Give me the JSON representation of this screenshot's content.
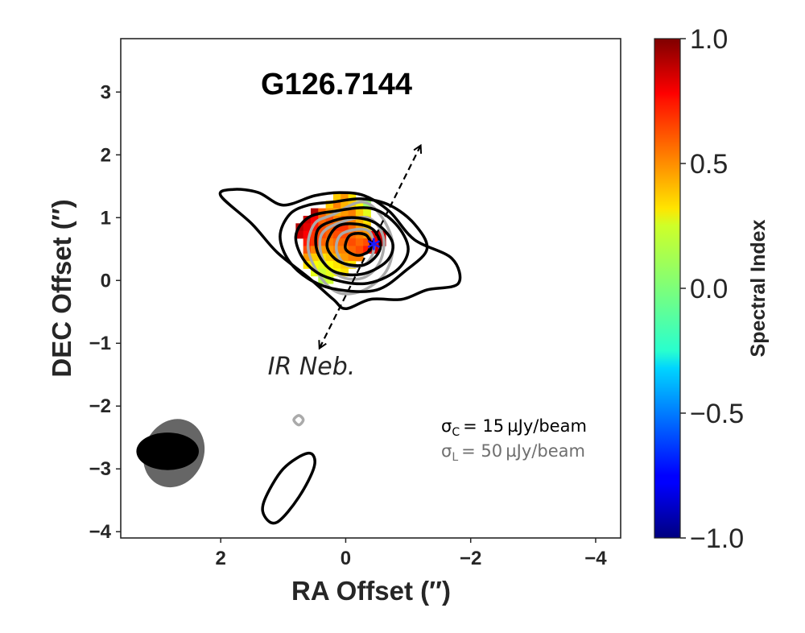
{
  "chart_data": {
    "type": "heatmap",
    "title": "G126.7144",
    "xlabel": "RA Offset (″)",
    "ylabel": "DEC Offset (″)",
    "xlim": [
      3.6,
      -4.4
    ],
    "ylim": [
      -4.1,
      3.85
    ],
    "xticks": [
      2,
      0,
      -2,
      -4
    ],
    "xtick_labels": [
      "2",
      "0",
      "−2",
      "−4"
    ],
    "yticks": [
      3,
      2,
      1,
      0,
      -1,
      -2,
      -3,
      -4
    ],
    "ytick_labels": [
      "3",
      "2",
      "1",
      "0",
      "−1",
      "−2",
      "−3",
      "−4"
    ],
    "colorbar": {
      "label": "Spectral Index",
      "range": [
        -1.0,
        1.0
      ],
      "ticks": [
        1.0,
        0.5,
        0.0,
        -0.5,
        -1.0
      ],
      "tick_labels": [
        "1.0",
        "0.5",
        "0.0",
        "−0.5",
        "−1.0"
      ],
      "colormap": "jet"
    },
    "pixel_size_arcsec": 0.12,
    "spectral_index_map": {
      "x": [
        0.86,
        0.74,
        0.62,
        0.5,
        0.38,
        0.26,
        0.14,
        0.02,
        -0.1,
        -0.22,
        -0.34,
        -0.46,
        -0.58,
        -0.7,
        -0.82,
        -0.94,
        -1.06
      ],
      "y": [
        1.33,
        1.21,
        1.09,
        0.97,
        0.85,
        0.73,
        0.61,
        0.49,
        0.37,
        0.25,
        0.13,
        0.01,
        -0.11
      ],
      "values": [
        [
          null,
          null,
          null,
          null,
          null,
          null,
          0.35,
          0.45,
          0.3,
          null,
          null,
          null,
          null,
          null,
          null,
          null,
          null
        ],
        [
          null,
          null,
          null,
          null,
          null,
          0.35,
          0.5,
          0.4,
          0.35,
          0.25,
          0.05,
          null,
          null,
          null,
          null,
          null,
          null
        ],
        [
          null,
          null,
          null,
          0.9,
          0.55,
          0.45,
          0.4,
          0.45,
          0.5,
          0.35,
          0.2,
          null,
          null,
          null,
          null,
          null,
          null
        ],
        [
          null,
          null,
          0.85,
          0.75,
          0.55,
          0.6,
          0.5,
          0.55,
          0.5,
          0.4,
          0.3,
          null,
          null,
          null,
          null,
          null,
          null
        ],
        [
          null,
          0.9,
          0.8,
          0.7,
          0.6,
          0.55,
          0.65,
          0.65,
          0.55,
          0.45,
          0.35,
          null,
          null,
          null,
          null,
          null,
          null
        ],
        [
          null,
          0.85,
          0.75,
          0.65,
          0.6,
          0.55,
          0.6,
          0.6,
          0.55,
          0.5,
          0.45,
          0.8,
          0.85,
          null,
          null,
          null,
          null
        ],
        [
          null,
          null,
          0.7,
          0.65,
          0.55,
          0.5,
          0.55,
          0.55,
          0.6,
          0.55,
          0.6,
          0.75,
          0.9,
          null,
          null,
          null,
          null
        ],
        [
          null,
          null,
          0.6,
          0.5,
          0.45,
          0.45,
          0.5,
          0.5,
          0.55,
          0.6,
          0.7,
          0.85,
          null,
          null,
          null,
          null,
          null
        ],
        [
          null,
          null,
          0.45,
          0.35,
          0.3,
          0.35,
          0.4,
          0.45,
          0.5,
          0.5,
          null,
          null,
          null,
          null,
          null,
          null,
          null
        ],
        [
          null,
          null,
          0.3,
          0.25,
          0.2,
          0.25,
          0.3,
          0.35,
          0.3,
          null,
          null,
          null,
          null,
          null,
          null,
          null,
          null
        ],
        [
          null,
          null,
          null,
          0.2,
          0.15,
          0.2,
          0.25,
          0.3,
          null,
          null,
          null,
          null,
          null,
          null,
          null,
          null,
          null
        ],
        [
          null,
          null,
          null,
          null,
          0.1,
          0.15,
          null,
          null,
          null,
          null,
          null,
          null,
          null,
          null,
          null,
          null,
          null
        ],
        [
          null,
          null,
          null,
          null,
          null,
          null,
          null,
          null,
          null,
          null,
          null,
          null,
          null,
          null,
          null,
          null,
          null
        ]
      ]
    },
    "continuum_contours": {
      "color": "#000000",
      "rms_text": "σ",
      "rms_subscript": "C",
      "rms_value": "= 15 µJy/beam",
      "contours": [
        {
          "level": 1,
          "points": [
            [
              1.0,
              1.2
            ],
            [
              1.4,
              1.4
            ],
            [
              1.8,
              1.45
            ],
            [
              2.0,
              1.35
            ],
            [
              1.5,
              0.9
            ],
            [
              1.1,
              0.45
            ],
            [
              0.6,
              0.05
            ],
            [
              0.2,
              -0.3
            ],
            [
              0.0,
              -0.45
            ],
            [
              -0.4,
              -0.3
            ],
            [
              -0.9,
              -0.3
            ],
            [
              -1.3,
              -0.15
            ],
            [
              -1.8,
              -0.05
            ],
            [
              -1.7,
              0.35
            ],
            [
              -1.1,
              0.65
            ],
            [
              -0.7,
              1.1
            ],
            [
              -0.3,
              1.35
            ],
            [
              0.1,
              1.4
            ],
            [
              0.5,
              1.35
            ]
          ]
        },
        {
          "level": 2,
          "points": [
            [
              0.2,
              1.25
            ],
            [
              0.6,
              1.2
            ],
            [
              0.9,
              1.05
            ],
            [
              1.05,
              0.7
            ],
            [
              0.9,
              0.3
            ],
            [
              0.55,
              0.0
            ],
            [
              0.1,
              -0.15
            ],
            [
              -0.5,
              -0.15
            ],
            [
              -0.95,
              0.15
            ],
            [
              -1.3,
              0.5
            ],
            [
              -1.1,
              0.9
            ],
            [
              -0.7,
              1.2
            ],
            [
              -0.25,
              1.3
            ]
          ]
        },
        {
          "level": 3,
          "points": [
            [
              0.2,
              1.1
            ],
            [
              0.6,
              1.0
            ],
            [
              0.8,
              0.7
            ],
            [
              0.65,
              0.3
            ],
            [
              0.3,
              0.05
            ],
            [
              -0.3,
              -0.05
            ],
            [
              -0.8,
              0.15
            ],
            [
              -1.0,
              0.5
            ],
            [
              -0.8,
              0.9
            ],
            [
              -0.4,
              1.15
            ]
          ]
        },
        {
          "level": 4,
          "points": [
            [
              0.2,
              0.95
            ],
            [
              0.45,
              0.8
            ],
            [
              0.45,
              0.45
            ],
            [
              0.2,
              0.15
            ],
            [
              -0.25,
              0.1
            ],
            [
              -0.65,
              0.3
            ],
            [
              -0.75,
              0.6
            ],
            [
              -0.5,
              0.9
            ],
            [
              -0.15,
              1.0
            ]
          ]
        },
        {
          "level": 5,
          "points": [
            [
              0.15,
              0.85
            ],
            [
              0.3,
              0.55
            ],
            [
              0.1,
              0.3
            ],
            [
              -0.3,
              0.25
            ],
            [
              -0.55,
              0.5
            ],
            [
              -0.45,
              0.8
            ],
            [
              -0.15,
              0.9
            ]
          ]
        },
        {
          "level": 6,
          "points": [
            [
              -0.05,
              0.7
            ],
            [
              0.0,
              0.5
            ],
            [
              -0.2,
              0.4
            ],
            [
              -0.4,
              0.5
            ],
            [
              -0.35,
              0.7
            ],
            [
              -0.2,
              0.75
            ]
          ]
        },
        {
          "level": 1,
          "points": [
            [
              1.3,
              -3.5
            ],
            [
              1.0,
              -3.0
            ],
            [
              0.6,
              -2.75
            ],
            [
              0.5,
              -2.95
            ],
            [
              0.75,
              -3.45
            ],
            [
              1.1,
              -3.85
            ],
            [
              1.3,
              -3.75
            ]
          ]
        }
      ],
      "beam": {
        "x": 2.85,
        "y": -2.72,
        "width_arcsec": 1.0,
        "height_arcsec": 0.6,
        "pa_deg": 0,
        "color": "#000000"
      }
    },
    "line_contours": {
      "color": "#aaaaaa",
      "rms_text": "σ",
      "rms_subscript": "L",
      "rms_value": "= 50 µJy/beam",
      "text_color": "#6f6f6f",
      "contours": [
        {
          "level": 1,
          "points": [
            [
              0.2,
              1.05
            ],
            [
              0.5,
              0.9
            ],
            [
              0.6,
              0.5
            ],
            [
              0.4,
              0.05
            ],
            [
              0.1,
              -0.2
            ],
            [
              -0.3,
              -0.15
            ],
            [
              -0.65,
              0.15
            ],
            [
              -0.75,
              0.6
            ],
            [
              -0.55,
              1.05
            ],
            [
              -0.25,
              1.25
            ]
          ]
        },
        {
          "level": 2,
          "points": [
            [
              0.15,
              0.9
            ],
            [
              0.4,
              0.7
            ],
            [
              0.35,
              0.3
            ],
            [
              0.05,
              0.05
            ],
            [
              -0.3,
              0.05
            ],
            [
              -0.55,
              0.3
            ],
            [
              -0.6,
              0.7
            ],
            [
              -0.35,
              1.0
            ]
          ]
        },
        {
          "level": 3,
          "points": [
            [
              0.05,
              0.75
            ],
            [
              0.15,
              0.5
            ],
            [
              0.0,
              0.25
            ],
            [
              -0.3,
              0.25
            ],
            [
              -0.45,
              0.5
            ],
            [
              -0.35,
              0.8
            ]
          ]
        },
        {
          "level": 1,
          "points": [
            [
              0.75,
              -2.15
            ],
            [
              0.83,
              -2.22
            ],
            [
              0.75,
              -2.3
            ],
            [
              0.68,
              -2.22
            ]
          ]
        }
      ],
      "beam": {
        "x": 2.75,
        "y": -2.75,
        "width_arcsec": 0.95,
        "height_arcsec": 1.12,
        "pa_deg": 25,
        "color": "#666666"
      }
    },
    "source_marker": {
      "x": -0.45,
      "y": 0.55,
      "symbol": "*",
      "color": "#1a1aff"
    },
    "outflow_axis": {
      "from": [
        -1.2,
        2.15
      ],
      "to": [
        0.42,
        -1.08
      ],
      "style": "dashed",
      "arrows": "both"
    },
    "annotation": {
      "text": "IR Neb.",
      "x": 0.6,
      "y": -1.35
    }
  }
}
